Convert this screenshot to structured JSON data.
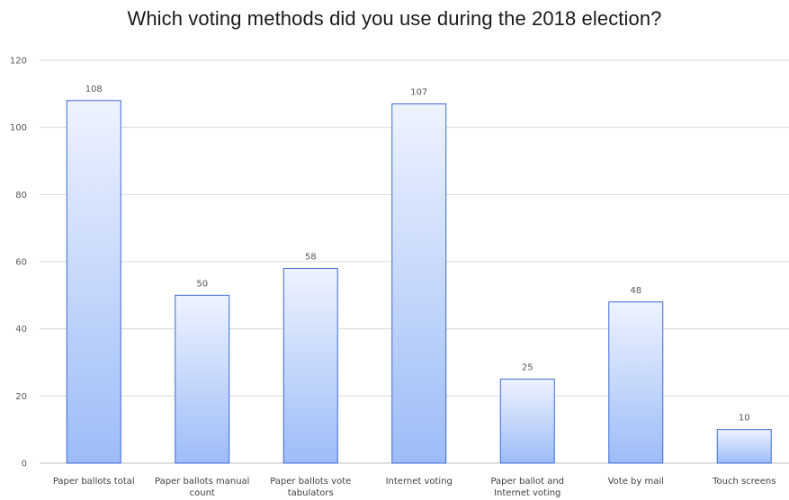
{
  "chart_data": {
    "type": "bar",
    "title": "Which voting methods did you use during the 2018 election?",
    "categories": [
      [
        "Paper ballots total"
      ],
      [
        "Paper ballots manual",
        "count"
      ],
      [
        "Paper ballots vote",
        "tabulators"
      ],
      [
        "Internet voting"
      ],
      [
        "Paper ballot and",
        "Internet voting"
      ],
      [
        "Vote by mail"
      ],
      [
        "Touch screens"
      ]
    ],
    "values": [
      108,
      50,
      58,
      107,
      25,
      48,
      10
    ],
    "ylim": [
      0,
      120
    ],
    "yticks": [
      0,
      20,
      40,
      60,
      80,
      100,
      120
    ],
    "xlabel": "",
    "ylabel": "",
    "grid": true,
    "legend": "none",
    "colors": {
      "bar_top": "#eef3ff",
      "bar_bottom": "#9dbcf7",
      "bar_border": "#3d6ad6",
      "grid": "#d9d9d9",
      "axis": "#bfbfbf"
    }
  }
}
